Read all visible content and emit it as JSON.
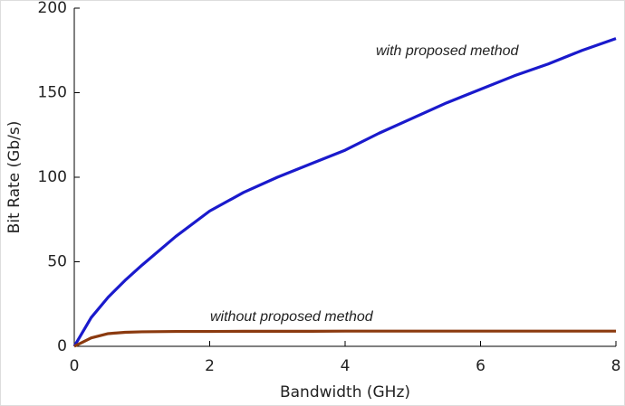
{
  "chart_data": {
    "type": "line",
    "xlabel": "Bandwidth (GHz)",
    "ylabel": "Bit Rate (Gb/s)",
    "annotations": [
      "with proposed method",
      "without proposed method"
    ],
    "x": [
      0,
      0.25,
      0.5,
      0.75,
      1,
      1.5,
      2,
      2.5,
      3,
      3.5,
      4,
      4.5,
      5,
      5.5,
      6,
      6.5,
      7,
      7.5,
      8
    ],
    "series": [
      {
        "name": "with proposed method",
        "color": "#1a1acc",
        "values": [
          0,
          17,
          29,
          39,
          48,
          65,
          80,
          91,
          100,
          108,
          116,
          126,
          135,
          144,
          152,
          160,
          167,
          175,
          182
        ]
      },
      {
        "name": "without proposed method",
        "color": "#8b3a0f",
        "values": [
          0,
          5,
          7.5,
          8.3,
          8.6,
          8.8,
          8.8,
          8.9,
          8.9,
          8.9,
          9,
          9,
          9,
          9,
          9,
          9,
          9,
          9,
          9
        ]
      }
    ],
    "xlim": [
      0,
      8
    ],
    "ylim": [
      0,
      200
    ],
    "xticks": [
      0,
      2,
      4,
      6,
      8
    ],
    "yticks": [
      0,
      50,
      100,
      150,
      200
    ],
    "grid": false
  }
}
